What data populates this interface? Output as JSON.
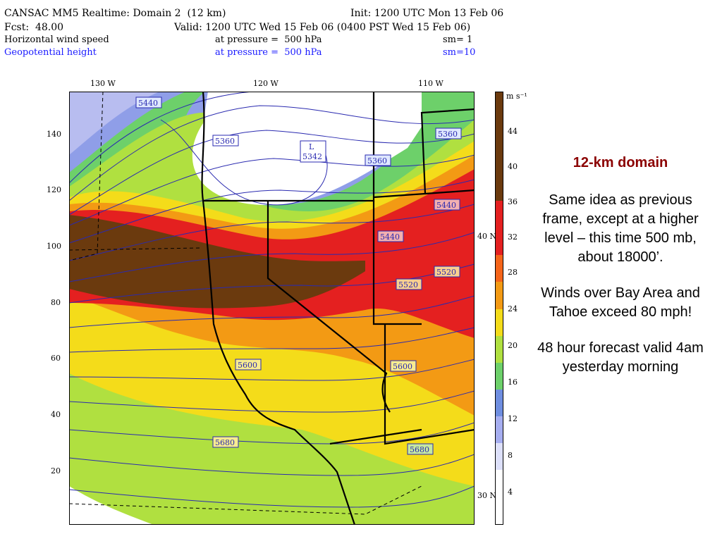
{
  "header": {
    "line1_left": "CANSAC MM5 Realtime: Domain 2  (12 km)",
    "line1_right": "Init: 1200 UTC Mon 13 Feb 06",
    "line2_left": "Fcst:  48.00",
    "line2_right": "Valid: 1200 UTC Wed 15 Feb 06 (0400 PST Wed 15 Feb 06)",
    "field1_name": "Horizontal wind speed",
    "field1_level": "at pressure =  500 hPa",
    "field1_sm": "sm= 1",
    "field2_name": "Geopotential height",
    "field2_level": "at pressure =  500 hPa",
    "field2_sm": "sm=10"
  },
  "map": {
    "lon_ticks": [
      "130 W",
      "120 W",
      "110 W"
    ],
    "y_ticks": [
      "140",
      "120",
      "100",
      "80",
      "60",
      "40",
      "20"
    ],
    "lat_marks": [
      "40 N",
      "30 N"
    ],
    "contour_labels": [
      "5440",
      "5360",
      "L",
      "5342",
      "5360",
      "5360",
      "5440",
      "5440",
      "5520",
      "5520",
      "5600",
      "5600",
      "5680",
      "5680"
    ],
    "colors": {
      "brown": "#6b3a0e",
      "red": "#e42020",
      "orange": "#f39a14",
      "yellow": "#f4dc1a",
      "lime": "#b0e040",
      "green": "#6dd06a",
      "blue": "#6f8ee0",
      "lavender": "#b8bdf0",
      "contour": "#2a2ab0"
    }
  },
  "colorbar": {
    "unit": "m s⁻¹",
    "labels": [
      "44",
      "40",
      "36",
      "32",
      "28",
      "24",
      "20",
      "16",
      "12",
      "8",
      "4"
    ]
  },
  "panel": {
    "title": "12-km domain",
    "para1": "Same idea as previous frame, except at a higher level – this time 500 mb, about 18000’.",
    "para2": "Winds over Bay Area and Tahoe exceed 80 mph!",
    "para3": "48 hour forecast valid 4am yesterday morning"
  }
}
